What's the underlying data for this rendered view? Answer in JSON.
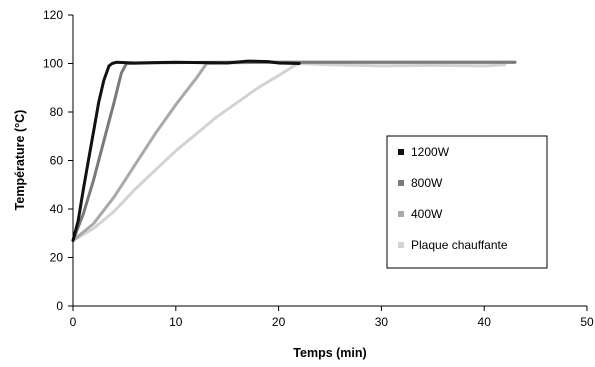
{
  "chart_data": {
    "type": "line",
    "xlabel": "Temps (min)",
    "ylabel": "Température (°C)",
    "xlim": [
      0,
      50
    ],
    "ylim": [
      0,
      120
    ],
    "xticks": [
      0,
      10,
      20,
      30,
      40,
      50
    ],
    "yticks": [
      0,
      20,
      40,
      60,
      80,
      100,
      120
    ],
    "grid": false,
    "legend_position": "right",
    "series": [
      {
        "name": "1200W",
        "color": "#111111",
        "x": [
          0,
          0.5,
          1,
          1.5,
          2,
          2.5,
          3,
          3.5,
          3.8,
          4.2,
          6,
          10,
          15,
          17,
          19,
          20,
          22
        ],
        "y": [
          27,
          35,
          48,
          60,
          72,
          84,
          93,
          99,
          100,
          100.5,
          100.2,
          100.5,
          100.2,
          101,
          100.8,
          100.2,
          100
        ]
      },
      {
        "name": "800W",
        "color": "#7a7a7a",
        "x": [
          0,
          1,
          2,
          3,
          4,
          4.7,
          5.2,
          8,
          15,
          25,
          35,
          43
        ],
        "y": [
          27,
          38,
          52,
          68,
          84,
          96,
          100,
          100.3,
          100.5,
          100.5,
          100.5,
          100.5
        ]
      },
      {
        "name": "400W",
        "color": "#a9a9a9",
        "x": [
          0,
          2,
          4,
          6,
          8,
          10,
          12,
          13,
          15,
          20,
          30,
          40,
          43
        ],
        "y": [
          27,
          34,
          45,
          58,
          71,
          83,
          94,
          100,
          100.3,
          100.5,
          100.5,
          100.5,
          100.5
        ]
      },
      {
        "name": "Plaque chauffante",
        "color": "#d3d3d3",
        "x": [
          0,
          2,
          4,
          6,
          8,
          10,
          12,
          14,
          16,
          18,
          20,
          21.5,
          22,
          25,
          30,
          35,
          40,
          42
        ],
        "y": [
          27,
          32,
          39,
          48,
          56,
          64,
          71,
          78,
          84,
          90,
          95,
          99,
          100,
          99.5,
          99,
          99.2,
          99,
          99.5
        ]
      }
    ]
  }
}
